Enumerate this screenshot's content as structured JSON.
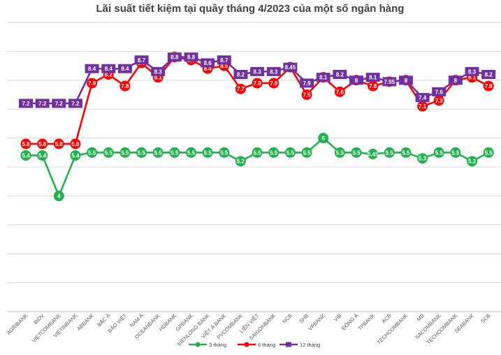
{
  "chart_data": {
    "type": "line",
    "title": "Lãi suất tiết kiệm tại quầy tháng 4/2023 của một số ngân hàng",
    "xlabel": "",
    "ylabel": "",
    "ylim": [
      0,
      10
    ],
    "grid": true,
    "legend_position": "bottom",
    "categories": [
      "AGRIBANK",
      "BIDV",
      "VIETCOMBANK",
      "VIETINBANK",
      "ABBANK",
      "BẮC Á",
      "BẢO VIỆT",
      "NAM Á",
      "OCEANBANK",
      "HDBANK",
      "GPBANK",
      "KIENLONG BANK",
      "VIỆT Á BANK",
      "PVCOMBANK",
      "LIÊN VIỆT",
      "SAIGONBANK",
      "NCB",
      "SHB",
      "VPBANK",
      "VIB",
      "ĐÔNG Á",
      "TPBANK",
      "ACB",
      "TECHCOMBANK",
      "MB",
      "SACOMBANK",
      "TECHCOMBANK",
      "SEABANK",
      "SCB"
    ],
    "series": [
      {
        "name": "3 tháng",
        "color": "#22b14c",
        "values": [
          5.4,
          5.4,
          4,
          5.4,
          5.5,
          5.5,
          5.5,
          5.5,
          5.5,
          5.5,
          5.5,
          5.5,
          5.5,
          5.2,
          5.5,
          5.5,
          5.5,
          5.5,
          6,
          5.5,
          5.5,
          5.45,
          5.5,
          5.5,
          5.3,
          5.5,
          5.5,
          5.2,
          5.5
        ],
        "labels": [
          "5.4",
          "5.4",
          "4",
          "5.4",
          "5.5",
          "5.5",
          "5.5",
          "5.5",
          "5.5",
          "5.5",
          "5.5",
          "5.5",
          "5.5",
          "5.2",
          "5.5",
          "5.5",
          "5.5",
          "5.5",
          "6",
          "5.5",
          "5.5",
          "5.45",
          "5.5",
          "5.5",
          "5.3",
          "5.5",
          "5.5",
          "5.2",
          "5.5"
        ]
      },
      {
        "name": "6 tháng",
        "color": "#ff0000",
        "values": [
          5.8,
          5.8,
          5.8,
          5.8,
          7.9,
          8.2,
          7.8,
          8.6,
          8.1,
          8.8,
          8.7,
          8.4,
          8.5,
          7.7,
          7.9,
          7.9,
          8.45,
          7.5,
          8.1,
          7.6,
          8,
          7.8,
          7.95,
          8,
          7.1,
          7.3,
          8,
          8.1,
          7.8
        ],
        "labels": [
          "5.8",
          "5.8",
          "5.8",
          "5.8",
          "7.9",
          "8.2",
          "7.8",
          "8.6",
          "8.1",
          "8.8",
          "8.7",
          "8.4",
          "8.5",
          "7.7",
          "7.9",
          "7.9",
          "8.45",
          "7.5",
          "8.1",
          "7.6",
          "8",
          "7.8",
          "7.95",
          "8",
          "7.1",
          "7.3",
          "8",
          "8.1",
          "7.8"
        ]
      },
      {
        "name": "12 tháng",
        "color": "#7030a0",
        "values": [
          7.2,
          7.2,
          7.2,
          7.2,
          8.4,
          8.4,
          8.4,
          8.7,
          8.3,
          8.8,
          8.8,
          8.6,
          8.7,
          8.2,
          8.3,
          8.3,
          8.45,
          7.9,
          8.1,
          8.2,
          8,
          8.1,
          7.95,
          8,
          7.4,
          7.6,
          8,
          8.3,
          8.2
        ],
        "labels": [
          "7.2",
          "7.2",
          "7.2",
          "7.2",
          "8.4",
          "8.4",
          "8.4",
          "8.7",
          "8.3",
          "8.8",
          "8.8",
          "8.6",
          "8.7",
          "8.2",
          "8.3",
          "8.3",
          "8.45",
          "7.9",
          "8.1",
          "8.2",
          "8",
          "8.1",
          "7.95",
          "8",
          "7.4",
          "7.6",
          "8",
          "8.3",
          "8.2"
        ]
      }
    ]
  }
}
